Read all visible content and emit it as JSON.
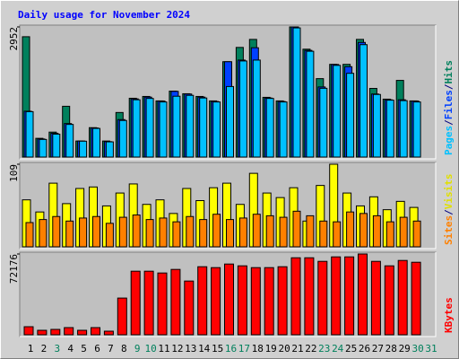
{
  "chart_data": {
    "type": "webalizer-daily",
    "title": "Daily usage for November 2024",
    "title_color": "#0000ff",
    "separator": "/",
    "categories": [
      "1",
      "2",
      "3",
      "4",
      "5",
      "6",
      "7",
      "8",
      "9",
      "10",
      "11",
      "12",
      "13",
      "14",
      "15",
      "16",
      "17",
      "18",
      "19",
      "20",
      "21",
      "22",
      "23",
      "24",
      "25",
      "26",
      "27",
      "28",
      "29",
      "30",
      "31"
    ],
    "category_colors": [
      "#000000",
      "#000000",
      "#00805c",
      "#000000",
      "#000000",
      "#000000",
      "#000000",
      "#000000",
      "#00805c",
      "#00805c",
      "#000000",
      "#000000",
      "#000000",
      "#000000",
      "#000000",
      "#00805c",
      "#00805c",
      "#000000",
      "#000000",
      "#000000",
      "#000000",
      "#000000",
      "#00805c",
      "#00805c",
      "#000000",
      "#000000",
      "#000000",
      "#000000",
      "#000000",
      "#00805c",
      "#00805c"
    ],
    "panels": [
      {
        "ylim": [
          0,
          2952
        ],
        "yticks": [
          2952
        ],
        "series": [
          {
            "name": "Hits",
            "color": "#00805c",
            "values": [
              2730,
              425,
              566,
              1152,
              364,
              667,
              364,
              1011,
              1334,
              1375,
              1274,
              1496,
              1436,
              1375,
              1274,
              2163,
              2487,
              2669,
              1355,
              1274,
              2952,
              2447,
              1779,
              2103,
              2103,
              2669,
              1557,
              1314,
              1739,
              1274,
              0
            ]
          },
          {
            "name": "Files",
            "color": "#0040ff",
            "values": [
              1040,
              410,
              540,
              760,
              364,
              660,
              350,
              850,
              1320,
              1360,
              1270,
              1490,
              1430,
              1360,
              1260,
              2163,
              2200,
              2480,
              1340,
              1260,
              2952,
              2420,
              1590,
              2100,
              2050,
              2600,
              1430,
              1300,
              1300,
              1270,
              0
            ]
          },
          {
            "name": "Pages",
            "color": "#00c0ff",
            "values": [
              1030,
              400,
              520,
              740,
              360,
              650,
              345,
              830,
              1300,
              1330,
              1250,
              1380,
              1400,
              1340,
              1250,
              1600,
              2180,
              2200,
              1330,
              1250,
              2930,
              2400,
              1560,
              2080,
              1900,
              2550,
              1420,
              1290,
              1280,
              1250,
              0
            ]
          }
        ]
      },
      {
        "ylim": [
          0,
          109
        ],
        "yticks": [
          109
        ],
        "series": [
          {
            "name": "Visits",
            "color": "#ffff00",
            "values": [
              62,
              46,
              84,
              57,
              77,
              79,
              54,
              71,
              83,
              56,
              62,
              44,
              77,
              61,
              78,
              84,
              56,
              97,
              71,
              65,
              78,
              34,
              81,
              109,
              71,
              54,
              66,
              49,
              60,
              52,
              0
            ]
          },
          {
            "name": "Sites",
            "color": "#ff8000",
            "values": [
              32,
              36,
              40,
              34,
              38,
              40,
              31,
              39,
              42,
              36,
              38,
              33,
              40,
              36,
              43,
              36,
              38,
              43,
              41,
              39,
              47,
              41,
              34,
              33,
              46,
              44,
              41,
              33,
              39,
              34,
              0
            ]
          }
        ]
      },
      {
        "ylim": [
          0,
          72176
        ],
        "yticks": [
          72176
        ],
        "series": [
          {
            "name": "KBytes",
            "color": "#ff0000",
            "values": [
              7200,
              4000,
              4800,
              6400,
              4000,
              6400,
              3200,
              32800,
              56800,
              56800,
              55200,
              58400,
              48000,
              60800,
              60000,
              63200,
              61600,
              60000,
              60000,
              60800,
              68800,
              68800,
              65600,
              69600,
              69600,
              72176,
              65600,
              61600,
              66400,
              64800,
              0
            ]
          }
        ]
      }
    ]
  }
}
